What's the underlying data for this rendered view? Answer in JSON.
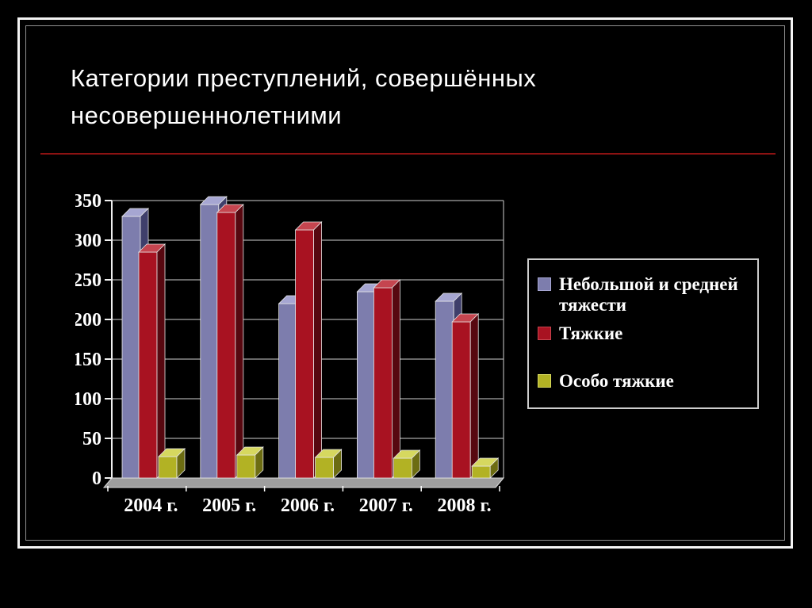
{
  "slide": {
    "title_lines": [
      "Категории преступлений, совершённых",
      "несовершеннолетними"
    ],
    "divider_color": "#8c1212",
    "background_color": "#000000",
    "frame_color": "#f4f4f4"
  },
  "chart_data": {
    "type": "bar",
    "style": "3d-clustered",
    "title": "",
    "xlabel": "",
    "ylabel": "",
    "categories": [
      "2004 г.",
      "2005 г.",
      "2006 г.",
      "2007 г.",
      "2008 г."
    ],
    "series": [
      {
        "name": "Небольшой и средней тяжести",
        "color": "#7d7dad",
        "color_top": "#a6a6d2",
        "color_side": "#3f3f6b",
        "values": [
          330,
          345,
          220,
          235,
          223
        ]
      },
      {
        "name": "Тяжкие",
        "color": "#a81221",
        "color_top": "#c5454f",
        "color_side": "#570810",
        "values": [
          285,
          335,
          313,
          240,
          197
        ]
      },
      {
        "name": "Особо тяжкие",
        "color": "#b2b224",
        "color_top": "#d6d85f",
        "color_side": "#6c6c12",
        "values": [
          27,
          29,
          26,
          25,
          15
        ]
      }
    ],
    "ylim": [
      0,
      350
    ],
    "ytick_step": 50,
    "yticks": [
      "0",
      "50",
      "100",
      "150",
      "200",
      "250",
      "300",
      "350"
    ],
    "grid": true,
    "gridline_color": "#cfcfcf",
    "floor_color": "#9e9e9e",
    "legend_position": "right"
  }
}
